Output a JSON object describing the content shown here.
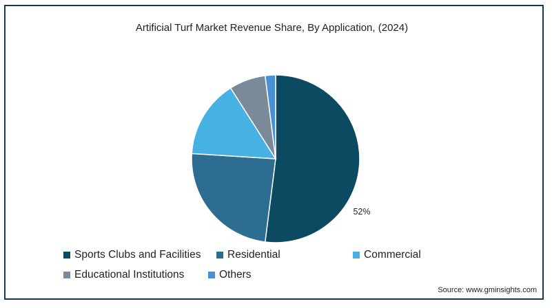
{
  "chart_data": {
    "type": "pie",
    "title": "Artificial Turf Market Revenue Share, By Application, (2024)",
    "categories": [
      "Sports Clubs and Facilities",
      "Residential",
      "Commercial",
      "Educational Institutions",
      "Others"
    ],
    "values": [
      52,
      24,
      15,
      7,
      2
    ],
    "colors": [
      "#0b4a60",
      "#2e6d92",
      "#47b1e4",
      "#7b8a99",
      "#4a90d4"
    ],
    "data_labels": [
      "52%",
      "",
      "",
      "",
      ""
    ],
    "legend_placement": "bottom"
  },
  "source": "Source: www.gminsights.com"
}
